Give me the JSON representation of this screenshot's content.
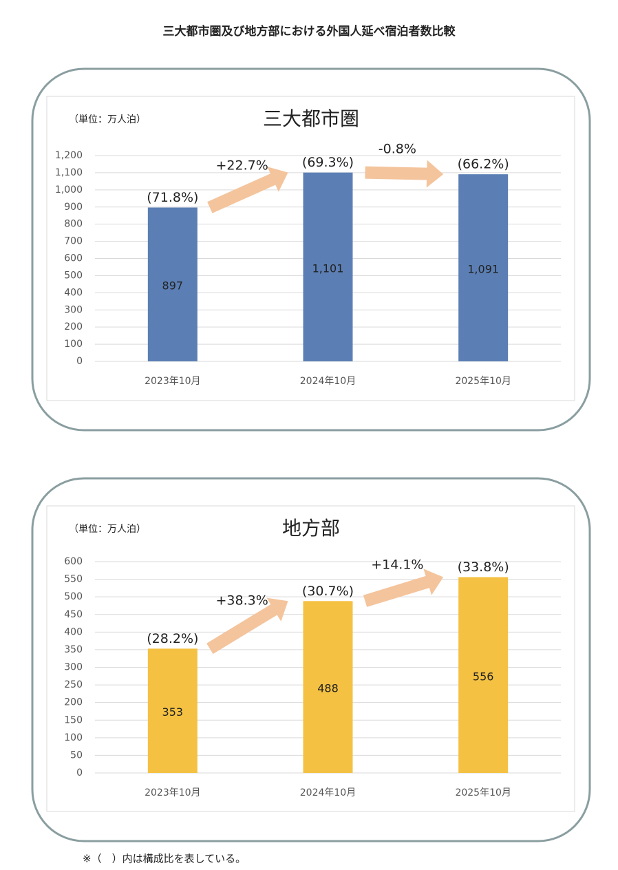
{
  "title": "三大都市圏及び地方部における外国人延べ宿泊者数比較",
  "footnote": "※（　）内は構成比を表している。",
  "chart_data": [
    {
      "type": "bar",
      "title": "三大都市圏",
      "unit_label": "（単位：万人泊）",
      "categories": [
        "2023年10月",
        "2024年10月",
        "2025年10月"
      ],
      "values": [
        897,
        1101,
        1091
      ],
      "value_labels": [
        "897",
        "1,101",
        "1,091"
      ],
      "share_labels": [
        "(71.8%)",
        "(69.3%)",
        "(66.2%)"
      ],
      "change_labels": [
        "+22.7%",
        "-0.8%"
      ],
      "color": "#5b7fb5",
      "arrow_color": "#f4c49c",
      "ylim": [
        0,
        1200
      ],
      "yticks": [
        0,
        100,
        200,
        300,
        400,
        500,
        600,
        700,
        800,
        900,
        {
          "value": 1000,
          "label": "1,000"
        },
        {
          "value": 1100,
          "label": "1,100"
        },
        {
          "value": 1200,
          "label": "1,200"
        }
      ],
      "grid": true
    },
    {
      "type": "bar",
      "title": "地方部",
      "unit_label": "（単位：万人泊）",
      "categories": [
        "2023年10月",
        "2024年10月",
        "2025年10月"
      ],
      "values": [
        353,
        488,
        556
      ],
      "value_labels": [
        "353",
        "488",
        "556"
      ],
      "share_labels": [
        "(28.2%)",
        "(30.7%)",
        "(33.8%)"
      ],
      "change_labels": [
        "+38.3%",
        "+14.1%"
      ],
      "color": "#f4c142",
      "arrow_color": "#f4c49c",
      "ylim": [
        0,
        600
      ],
      "yticks": [
        0,
        50,
        100,
        150,
        200,
        250,
        300,
        350,
        400,
        450,
        500,
        550,
        600
      ],
      "grid": true
    }
  ]
}
